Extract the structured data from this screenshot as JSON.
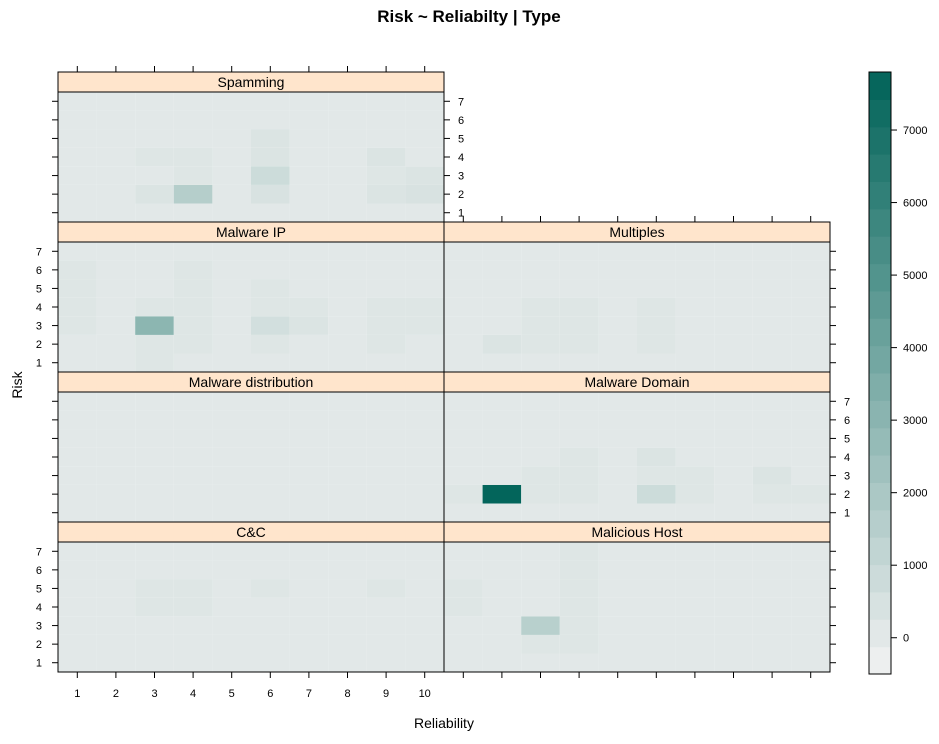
{
  "chart_data": {
    "type": "heatmap",
    "title": "Risk ~ Reliabilty | Type",
    "xlabel": "Reliability",
    "ylabel": "Risk",
    "x_ticks": [
      1,
      2,
      3,
      4,
      5,
      6,
      7,
      8,
      9,
      10
    ],
    "y_ticks": [
      1,
      2,
      3,
      4,
      5,
      6,
      7
    ],
    "colorbar": {
      "min": -500,
      "max": 7800,
      "ticks": [
        0,
        1000,
        2000,
        3000,
        4000,
        5000,
        6000,
        7000
      ],
      "low_color": "#f2f2f2",
      "high_color": "#006359"
    },
    "panels": [
      {
        "name": "Spamming",
        "values": [
          [
            60,
            60,
            60,
            60,
            60,
            60,
            60,
            60,
            60,
            60
          ],
          [
            60,
            60,
            300,
            1600,
            60,
            400,
            60,
            60,
            300,
            400
          ],
          [
            60,
            60,
            60,
            200,
            60,
            800,
            60,
            60,
            200,
            300
          ],
          [
            60,
            60,
            200,
            200,
            60,
            300,
            60,
            60,
            300,
            60
          ],
          [
            60,
            60,
            60,
            60,
            60,
            300,
            60,
            60,
            60,
            60
          ],
          [
            60,
            60,
            60,
            60,
            60,
            60,
            60,
            60,
            60,
            60
          ],
          [
            60,
            60,
            60,
            60,
            60,
            60,
            60,
            60,
            60,
            60
          ]
        ]
      },
      {
        "name": "Malware IP",
        "values": [
          [
            60,
            60,
            200,
            60,
            60,
            60,
            60,
            60,
            60,
            60
          ],
          [
            60,
            60,
            200,
            200,
            60,
            200,
            60,
            60,
            200,
            60
          ],
          [
            200,
            60,
            3000,
            200,
            60,
            600,
            300,
            60,
            200,
            200
          ],
          [
            200,
            60,
            200,
            200,
            60,
            200,
            200,
            60,
            200,
            200
          ],
          [
            200,
            60,
            60,
            200,
            60,
            200,
            60,
            60,
            60,
            60
          ],
          [
            200,
            60,
            60,
            200,
            60,
            60,
            60,
            60,
            60,
            60
          ],
          [
            60,
            60,
            60,
            60,
            60,
            60,
            60,
            60,
            60,
            60
          ]
        ]
      },
      {
        "name": "Multiples",
        "values": [
          [
            60,
            60,
            60,
            60,
            60,
            60,
            60,
            60,
            60,
            60
          ],
          [
            60,
            300,
            200,
            200,
            60,
            200,
            60,
            60,
            60,
            60
          ],
          [
            60,
            60,
            200,
            200,
            60,
            200,
            60,
            60,
            60,
            60
          ],
          [
            60,
            60,
            200,
            200,
            60,
            200,
            60,
            60,
            60,
            60
          ],
          [
            60,
            60,
            60,
            60,
            60,
            60,
            60,
            60,
            60,
            60
          ],
          [
            60,
            60,
            60,
            60,
            60,
            60,
            60,
            60,
            60,
            60
          ],
          [
            60,
            60,
            60,
            60,
            60,
            60,
            60,
            60,
            60,
            60
          ]
        ]
      },
      {
        "name": "Malware distribution",
        "values": [
          [
            60,
            60,
            60,
            60,
            60,
            60,
            60,
            60,
            60,
            60
          ],
          [
            60,
            60,
            60,
            60,
            60,
            60,
            60,
            60,
            60,
            60
          ],
          [
            60,
            60,
            60,
            60,
            60,
            60,
            60,
            60,
            60,
            60
          ],
          [
            60,
            60,
            60,
            60,
            60,
            60,
            60,
            60,
            60,
            60
          ],
          [
            60,
            60,
            60,
            60,
            60,
            60,
            60,
            60,
            60,
            60
          ],
          [
            60,
            60,
            60,
            60,
            60,
            60,
            60,
            60,
            60,
            60
          ],
          [
            60,
            60,
            60,
            60,
            60,
            60,
            60,
            60,
            60,
            60
          ]
        ]
      },
      {
        "name": "Malware Domain",
        "values": [
          [
            60,
            60,
            60,
            60,
            60,
            60,
            60,
            60,
            60,
            60
          ],
          [
            200,
            7700,
            200,
            200,
            60,
            800,
            200,
            60,
            200,
            200
          ],
          [
            60,
            60,
            200,
            200,
            60,
            200,
            200,
            60,
            300,
            60
          ],
          [
            60,
            60,
            60,
            200,
            60,
            300,
            60,
            60,
            60,
            60
          ],
          [
            60,
            60,
            60,
            60,
            60,
            60,
            60,
            60,
            60,
            60
          ],
          [
            60,
            60,
            60,
            60,
            60,
            60,
            60,
            60,
            60,
            60
          ],
          [
            60,
            60,
            60,
            60,
            60,
            60,
            60,
            60,
            60,
            60
          ]
        ]
      },
      {
        "name": "C&C",
        "values": [
          [
            60,
            60,
            60,
            60,
            60,
            60,
            60,
            60,
            60,
            60
          ],
          [
            60,
            60,
            60,
            60,
            60,
            60,
            60,
            60,
            60,
            60
          ],
          [
            60,
            60,
            60,
            60,
            60,
            60,
            60,
            60,
            60,
            60
          ],
          [
            60,
            60,
            200,
            200,
            60,
            60,
            60,
            60,
            60,
            60
          ],
          [
            60,
            60,
            200,
            200,
            60,
            200,
            60,
            60,
            200,
            60
          ],
          [
            60,
            60,
            60,
            60,
            60,
            60,
            60,
            60,
            60,
            60
          ],
          [
            60,
            60,
            60,
            60,
            60,
            60,
            60,
            60,
            60,
            60
          ]
        ]
      },
      {
        "name": "Malicious Host",
        "values": [
          [
            60,
            60,
            60,
            60,
            60,
            60,
            60,
            60,
            60,
            60
          ],
          [
            60,
            60,
            200,
            200,
            60,
            60,
            60,
            60,
            60,
            60
          ],
          [
            60,
            60,
            1500,
            200,
            60,
            60,
            60,
            60,
            60,
            60
          ],
          [
            200,
            60,
            60,
            200,
            60,
            60,
            60,
            60,
            60,
            60
          ],
          [
            200,
            60,
            60,
            200,
            60,
            60,
            60,
            60,
            60,
            60
          ],
          [
            60,
            60,
            60,
            200,
            60,
            60,
            60,
            60,
            60,
            60
          ],
          [
            60,
            60,
            60,
            200,
            60,
            60,
            60,
            60,
            60,
            60
          ]
        ]
      }
    ]
  }
}
